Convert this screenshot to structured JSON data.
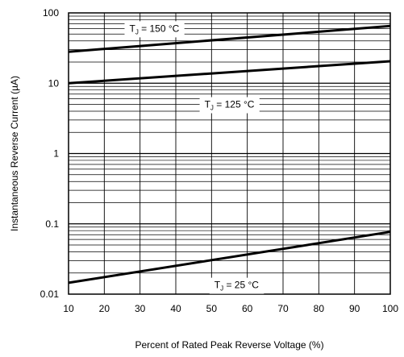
{
  "chart_data": {
    "type": "line",
    "x_scale": "linear",
    "y_scale": "log",
    "xlim": [
      10,
      100
    ],
    "ylim": [
      0.01,
      100
    ],
    "x_ticks": [
      "10",
      "20",
      "30",
      "40",
      "50",
      "60",
      "70",
      "80",
      "90",
      "100"
    ],
    "y_ticks": [
      "100",
      "10",
      "1",
      "0.1",
      "0.01"
    ],
    "xlabel": "Percent of Rated Peak Reverse Voltage (%)",
    "ylabel": "Instantaneous Reverse Current (µA)",
    "grid": true,
    "series": [
      {
        "label_main": "T",
        "label_sub": "J",
        "label_rest": " = 150 °C",
        "x": [
          10,
          100
        ],
        "y": [
          28,
          65
        ],
        "label_at": [
          34,
          60
        ]
      },
      {
        "label_main": "T",
        "label_sub": "J",
        "label_rest": " = 125 °C",
        "x": [
          10,
          100
        ],
        "y": [
          10,
          20.5
        ],
        "label_at": [
          55,
          5
        ]
      },
      {
        "label_main": "T",
        "label_sub": "J",
        "label_rest": " = 25 °C",
        "x": [
          10,
          100
        ],
        "y": [
          0.0145,
          0.077
        ],
        "label_at": [
          57,
          0.0135
        ]
      }
    ]
  }
}
